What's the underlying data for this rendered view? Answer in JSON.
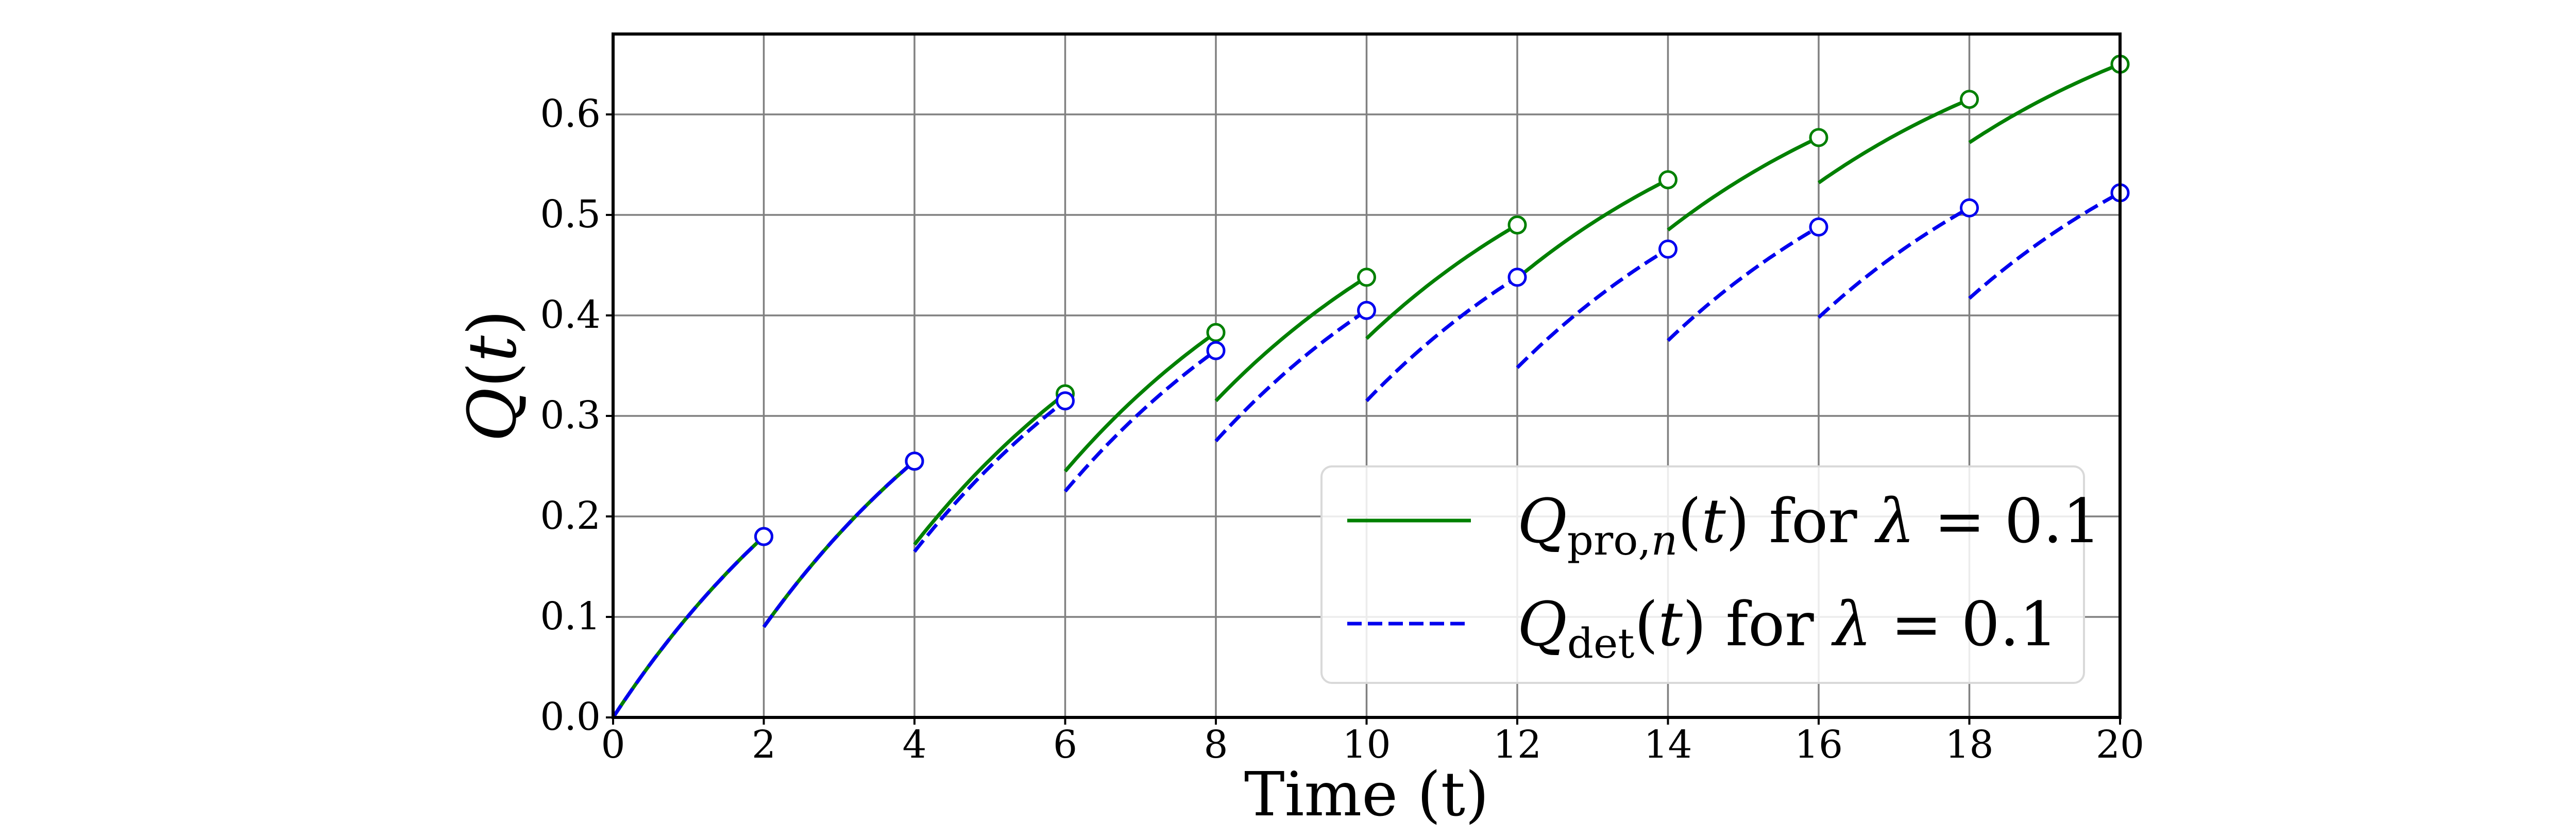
{
  "chart_data": {
    "type": "line",
    "title": "",
    "xlabel": "Time (t)",
    "ylabel": "Q(t)",
    "xlim": [
      0,
      20
    ],
    "ylim": [
      0,
      0.68
    ],
    "xticks": [
      0,
      2,
      4,
      6,
      8,
      10,
      12,
      14,
      16,
      18,
      20
    ],
    "yticks": [
      0.0,
      0.1,
      0.2,
      0.3,
      0.4,
      0.5,
      0.6
    ],
    "xtick_labels": [
      "0",
      "2",
      "4",
      "6",
      "8",
      "10",
      "12",
      "14",
      "16",
      "18",
      "20"
    ],
    "ytick_labels": [
      "0.0",
      "0.1",
      "0.2",
      "0.3",
      "0.4",
      "0.5",
      "0.6"
    ],
    "grid": true,
    "legend_position": "lower-right",
    "series": [
      {
        "name": "Q_pro,n(t) for λ = 0.1",
        "legend_label": "Qpro,n(t) for λ = 0.1",
        "color": "#008000",
        "style": "solid",
        "segments": [
          {
            "start": [
              0,
              0.0
            ],
            "end": [
              2,
              0.18
            ]
          },
          {
            "start": [
              2,
              0.09
            ],
            "end": [
              4,
              0.255
            ]
          },
          {
            "start": [
              4,
              0.172
            ],
            "end": [
              6,
              0.322
            ]
          },
          {
            "start": [
              6,
              0.245
            ],
            "end": [
              8,
              0.383
            ]
          },
          {
            "start": [
              8,
              0.315
            ],
            "end": [
              10,
              0.438
            ]
          },
          {
            "start": [
              10,
              0.377
            ],
            "end": [
              12,
              0.49
            ]
          },
          {
            "start": [
              12,
              0.437
            ],
            "end": [
              14,
              0.535
            ]
          },
          {
            "start": [
              14,
              0.485
            ],
            "end": [
              16,
              0.577
            ]
          },
          {
            "start": [
              16,
              0.532
            ],
            "end": [
              18,
              0.615
            ]
          },
          {
            "start": [
              18,
              0.572
            ],
            "end": [
              20,
              0.65
            ]
          }
        ]
      },
      {
        "name": "Q_det(t) for λ = 0.1",
        "legend_label": "Qdet(t) for λ = 0.1",
        "color": "#0000ee",
        "style": "dashed",
        "segments": [
          {
            "start": [
              0,
              0.0
            ],
            "end": [
              2,
              0.18
            ]
          },
          {
            "start": [
              2,
              0.09
            ],
            "end": [
              4,
              0.255
            ]
          },
          {
            "start": [
              4,
              0.165
            ],
            "end": [
              6,
              0.315
            ]
          },
          {
            "start": [
              6,
              0.225
            ],
            "end": [
              8,
              0.365
            ]
          },
          {
            "start": [
              8,
              0.275
            ],
            "end": [
              10,
              0.405
            ]
          },
          {
            "start": [
              10,
              0.315
            ],
            "end": [
              12,
              0.438
            ]
          },
          {
            "start": [
              12,
              0.348
            ],
            "end": [
              14,
              0.466
            ]
          },
          {
            "start": [
              14,
              0.375
            ],
            "end": [
              16,
              0.488
            ]
          },
          {
            "start": [
              16,
              0.398
            ],
            "end": [
              18,
              0.507
            ]
          },
          {
            "start": [
              18,
              0.417
            ],
            "end": [
              20,
              0.522
            ]
          }
        ]
      }
    ]
  }
}
